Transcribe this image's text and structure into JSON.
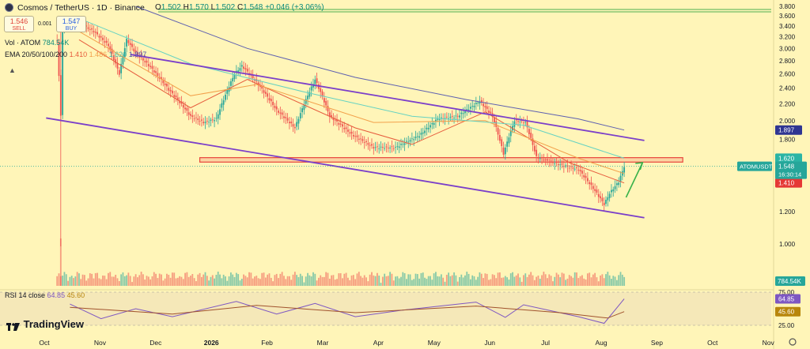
{
  "header": {
    "symbol_title": "Cosmos / TetherUS · 1D · Binance",
    "ohlc": {
      "o_label": "O",
      "o": "1.502",
      "h_label": "H",
      "h": "1.570",
      "l_label": "L",
      "l": "1.502",
      "c_label": "C",
      "c": "1.548",
      "change": "+0.046 (+3.06%)"
    },
    "sell_price": "1.546",
    "sell_label": "SELL",
    "spread": "0.001",
    "buy_price": "1.547",
    "buy_label": "BUY",
    "vol_label": "Vol · ATOM",
    "vol_value": "784.54K",
    "ema_label": "EMA 20/50/100/200",
    "ema_values": [
      "1.410",
      "1.486",
      "1.620",
      "1.897"
    ]
  },
  "rsi": {
    "label": "RSI 14 close",
    "value": "64.85",
    "ma_value": "45.60"
  },
  "branding": {
    "name": "TradingView"
  },
  "price_labels": {
    "symbol_tag": "ATOMUSDT",
    "last": "1.548",
    "countdown": "16:30:14",
    "vol_tag": "784.54K"
  },
  "colors": {
    "background": "#fff5b8",
    "candle_up": "#26a69a",
    "candle_down": "#ef5350",
    "ema20": "#e65b3c",
    "ema50": "#f2a04a",
    "ema100": "#64d2c2",
    "ema200": "#5d5fb0",
    "channel": "#7b3fc9",
    "zone": "#e8453c",
    "arrow": "#38b24a",
    "resistance_line": "#4caf50"
  },
  "chart_data": {
    "type": "candlestick",
    "x_ticks": [
      "Oct",
      "Nov",
      "Dec",
      "2026",
      "Feb",
      "Mar",
      "Apr",
      "May",
      "Jun",
      "Jul",
      "Aug",
      "Sep",
      "Oct",
      "Nov"
    ],
    "y_ticks": [
      "3.800",
      "3.600",
      "3.400",
      "3.200",
      "3.000",
      "2.800",
      "2.600",
      "2.400",
      "2.200",
      "2.000",
      "1.800",
      "1.600",
      "1.200",
      "1.000"
    ],
    "y_scale": "log",
    "ylim": [
      0.9,
      3.85
    ],
    "last_price": 1.548,
    "ema_last": {
      "ema20": 1.41,
      "ema50": 1.486,
      "ema100": 1.62,
      "ema200": 1.897
    },
    "price_path": [
      {
        "date": "2025-10-08",
        "price": 3.12
      },
      {
        "date": "2025-10-10",
        "price": 2.05
      },
      {
        "date": "2025-10-11",
        "price": 3.4
      },
      {
        "date": "2025-10-20",
        "price": 3.45
      },
      {
        "date": "2025-10-28",
        "price": 3.3
      },
      {
        "date": "2025-11-05",
        "price": 3.05
      },
      {
        "date": "2025-11-11",
        "price": 2.6
      },
      {
        "date": "2025-11-15",
        "price": 3.15
      },
      {
        "date": "2025-11-20",
        "price": 2.92
      },
      {
        "date": "2025-11-28",
        "price": 2.7
      },
      {
        "date": "2025-12-08",
        "price": 2.38
      },
      {
        "date": "2025-12-20",
        "price": 2.05
      },
      {
        "date": "2025-12-27",
        "price": 1.98
      },
      {
        "date": "2026-01-03",
        "price": 2.02
      },
      {
        "date": "2026-01-13",
        "price": 2.6
      },
      {
        "date": "2026-01-17",
        "price": 2.72
      },
      {
        "date": "2026-01-26",
        "price": 2.45
      },
      {
        "date": "2026-02-05",
        "price": 2.12
      },
      {
        "date": "2026-02-15",
        "price": 1.92
      },
      {
        "date": "2026-02-26",
        "price": 2.52
      },
      {
        "date": "2026-03-06",
        "price": 2.05
      },
      {
        "date": "2026-03-18",
        "price": 1.85
      },
      {
        "date": "2026-03-30",
        "price": 1.72
      },
      {
        "date": "2026-04-11",
        "price": 1.72
      },
      {
        "date": "2026-04-24",
        "price": 1.84
      },
      {
        "date": "2026-05-04",
        "price": 2.02
      },
      {
        "date": "2026-05-15",
        "price": 2.05
      },
      {
        "date": "2026-05-27",
        "price": 2.23
      },
      {
        "date": "2026-06-03",
        "price": 2.05
      },
      {
        "date": "2026-06-09",
        "price": 1.66
      },
      {
        "date": "2026-06-15",
        "price": 2.0
      },
      {
        "date": "2026-06-21",
        "price": 1.98
      },
      {
        "date": "2026-06-27",
        "price": 1.63
      },
      {
        "date": "2026-07-08",
        "price": 1.57
      },
      {
        "date": "2026-07-20",
        "price": 1.52
      },
      {
        "date": "2026-07-30",
        "price": 1.33
      },
      {
        "date": "2026-08-03",
        "price": 1.25
      },
      {
        "date": "2026-08-06",
        "price": 1.33
      },
      {
        "date": "2026-08-11",
        "price": 1.42
      },
      {
        "date": "2026-08-14",
        "price": 1.548
      }
    ],
    "ema_series": {
      "ema20": [
        {
          "date": "2025-10-20",
          "price": 3.15
        },
        {
          "date": "2025-12-20",
          "price": 2.15
        },
        {
          "date": "2026-01-20",
          "price": 2.52
        },
        {
          "date": "2026-03-20",
          "price": 1.92
        },
        {
          "date": "2026-04-20",
          "price": 1.75
        },
        {
          "date": "2026-05-30",
          "price": 2.1
        },
        {
          "date": "2026-07-15",
          "price": 1.58
        },
        {
          "date": "2026-08-14",
          "price": 1.41
        }
      ],
      "ema50": [
        {
          "date": "2025-10-20",
          "price": 3.3
        },
        {
          "date": "2025-12-20",
          "price": 2.3
        },
        {
          "date": "2026-01-25",
          "price": 2.45
        },
        {
          "date": "2026-03-30",
          "price": 1.98
        },
        {
          "date": "2026-05-30",
          "price": 2.0
        },
        {
          "date": "2026-07-20",
          "price": 1.62
        },
        {
          "date": "2026-08-14",
          "price": 1.486
        }
      ],
      "ema100": [
        {
          "date": "2025-10-20",
          "price": 3.55
        },
        {
          "date": "2025-12-20",
          "price": 2.75
        },
        {
          "date": "2026-02-20",
          "price": 2.35
        },
        {
          "date": "2026-04-20",
          "price": 2.05
        },
        {
          "date": "2026-06-20",
          "price": 1.95
        },
        {
          "date": "2026-08-14",
          "price": 1.62
        }
      ],
      "ema200": [
        {
          "date": "2025-11-20",
          "price": 3.8
        },
        {
          "date": "2026-01-20",
          "price": 3.0
        },
        {
          "date": "2026-03-20",
          "price": 2.55
        },
        {
          "date": "2026-05-20",
          "price": 2.25
        },
        {
          "date": "2026-07-20",
          "price": 2.02
        },
        {
          "date": "2026-08-14",
          "price": 1.897
        }
      ]
    },
    "channel_upper": [
      {
        "date": "2025-11-17",
        "price": 2.9
      },
      {
        "date": "2026-08-25",
        "price": 1.79
      }
    ],
    "channel_lower": [
      {
        "date": "2025-10-02",
        "price": 2.03
      },
      {
        "date": "2026-08-25",
        "price": 1.16
      }
    ],
    "support_zone": {
      "from": "2025-12-25",
      "to": "2026-09-15",
      "low": 1.585,
      "high": 1.625
    },
    "rsi_ylim": [
      25,
      75
    ],
    "rsi_levels": [
      25.0,
      45.6,
      64.85,
      75.0
    ],
    "rsi_path": [
      {
        "date": "2025-10-15",
        "value": 57
      },
      {
        "date": "2025-11-01",
        "value": 35
      },
      {
        "date": "2025-11-20",
        "value": 50
      },
      {
        "date": "2025-12-10",
        "value": 38
      },
      {
        "date": "2026-01-14",
        "value": 61
      },
      {
        "date": "2026-02-05",
        "value": 42
      },
      {
        "date": "2026-02-26",
        "value": 58
      },
      {
        "date": "2026-03-20",
        "value": 38
      },
      {
        "date": "2026-04-15",
        "value": 48
      },
      {
        "date": "2026-05-25",
        "value": 60
      },
      {
        "date": "2026-06-10",
        "value": 37
      },
      {
        "date": "2026-06-20",
        "value": 56
      },
      {
        "date": "2026-07-20",
        "value": 38
      },
      {
        "date": "2026-08-03",
        "value": 28
      },
      {
        "date": "2026-08-14",
        "value": 64.85
      }
    ],
    "rsi_ma_path": [
      {
        "date": "2025-10-15",
        "value": 52
      },
      {
        "date": "2025-12-10",
        "value": 42
      },
      {
        "date": "2026-01-25",
        "value": 55
      },
      {
        "date": "2026-03-20",
        "value": 44
      },
      {
        "date": "2026-05-25",
        "value": 54
      },
      {
        "date": "2026-07-10",
        "value": 44
      },
      {
        "date": "2026-08-05",
        "value": 36
      },
      {
        "date": "2026-08-14",
        "value": 45.6
      }
    ]
  }
}
